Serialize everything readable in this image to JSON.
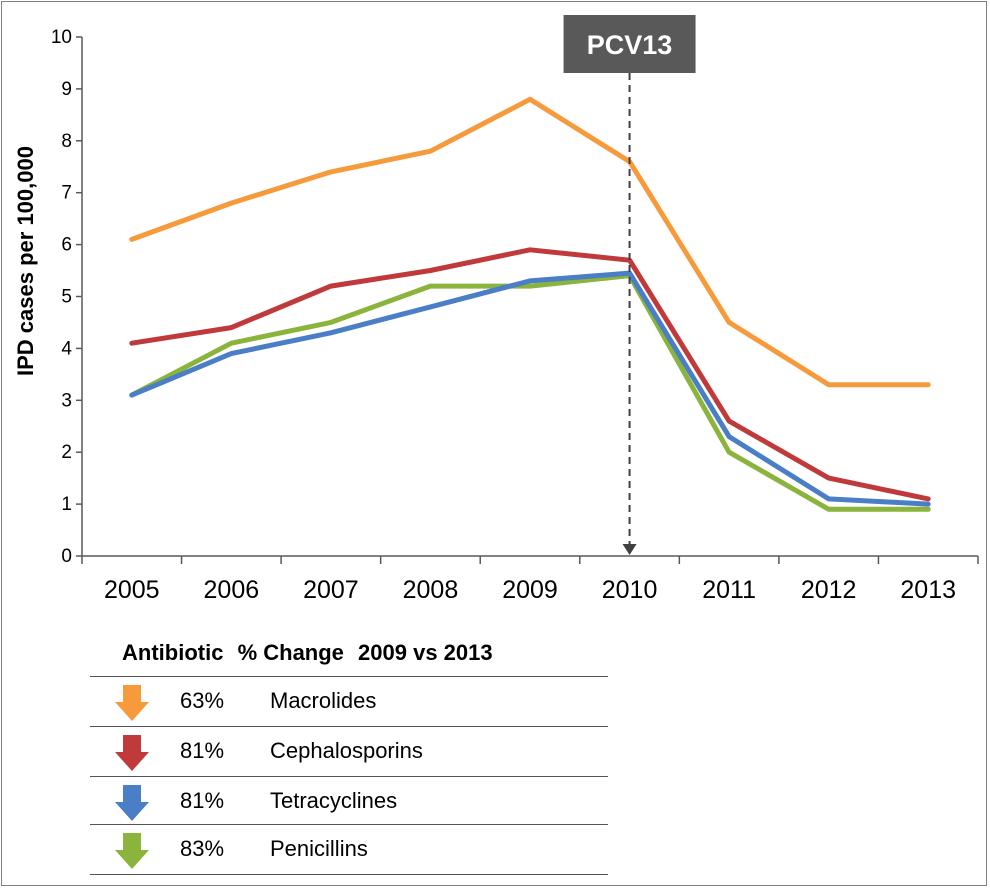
{
  "chart_data": {
    "type": "line",
    "ylabel": "IPD cases per 100,000",
    "xlabel": "",
    "x": [
      "2005",
      "2006",
      "2007",
      "2008",
      "2009",
      "2010",
      "2011",
      "2012",
      "2013"
    ],
    "ylim": [
      0,
      10
    ],
    "yticks": [
      "0",
      "1",
      "2",
      "3",
      "4",
      "5",
      "6",
      "7",
      "8",
      "9",
      "10"
    ],
    "grid": false,
    "annotation": {
      "label": "PCV13",
      "at_x": "2010"
    },
    "series": [
      {
        "name": "Macrolides",
        "color": "#f79a3c",
        "values": [
          6.1,
          6.8,
          7.4,
          7.8,
          8.8,
          7.6,
          4.5,
          3.3,
          3.3
        ]
      },
      {
        "name": "Cephalosporins",
        "color": "#c0393b",
        "values": [
          4.1,
          4.4,
          5.2,
          5.5,
          5.9,
          5.7,
          2.6,
          1.5,
          1.1
        ]
      },
      {
        "name": "Tetracyclines",
        "color": "#4a7ec6",
        "values": [
          3.1,
          3.9,
          4.3,
          4.8,
          5.3,
          5.45,
          2.3,
          1.1,
          1.0
        ]
      },
      {
        "name": "Penicillins",
        "color": "#8ab43c",
        "values": [
          3.1,
          4.1,
          4.5,
          5.2,
          5.2,
          5.4,
          2.0,
          0.9,
          0.9
        ]
      }
    ]
  },
  "legend": {
    "title_parts": [
      "Antibiotic",
      "% Change",
      "2009 vs 2013"
    ],
    "rows": [
      {
        "pct": "63%",
        "name": "Macrolides",
        "color": "#f79a3c"
      },
      {
        "pct": "81%",
        "name": "Cephalosporins",
        "color": "#c0393b"
      },
      {
        "pct": "81%",
        "name": "Tetracyclines",
        "color": "#4a7ec6"
      },
      {
        "pct": "83%",
        "name": "Penicillins",
        "color": "#8ab43c"
      }
    ]
  }
}
